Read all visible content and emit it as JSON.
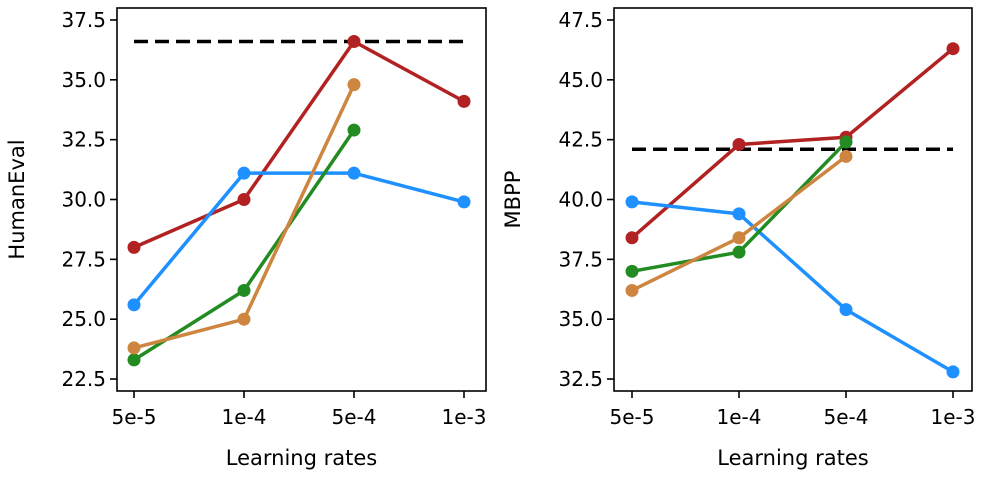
{
  "chart_data": [
    {
      "type": "line",
      "title": "",
      "xlabel": "Learning rates",
      "ylabel": "HumanEval",
      "categories": [
        "5e-5",
        "1e-4",
        "5e-4",
        "1e-3"
      ],
      "ylim": [
        22,
        38
      ],
      "yticks": [
        22.5,
        25.0,
        27.5,
        30.0,
        32.5,
        35.0,
        37.5
      ],
      "ytick_labels": [
        "22.5",
        "25.0",
        "27.5",
        "30.0",
        "32.5",
        "35.0",
        "37.5"
      ],
      "reference_line": {
        "value": 36.6,
        "style": "dashed",
        "color": "#000000"
      },
      "series": [
        {
          "name": "red",
          "color": "#b22222",
          "values": [
            28.0,
            30.0,
            36.6,
            34.1
          ]
        },
        {
          "name": "blue",
          "color": "#1e90ff",
          "values": [
            25.6,
            31.1,
            31.1,
            29.9
          ]
        },
        {
          "name": "green",
          "color": "#228b22",
          "values": [
            23.3,
            26.2,
            32.9,
            null
          ]
        },
        {
          "name": "orange",
          "color": "#cd853f",
          "values": [
            23.8,
            25.0,
            34.8,
            null
          ]
        }
      ]
    },
    {
      "type": "line",
      "title": "",
      "xlabel": "Learning rates",
      "ylabel": "MBPP",
      "categories": [
        "5e-5",
        "1e-4",
        "5e-4",
        "1e-3"
      ],
      "ylim": [
        32,
        48
      ],
      "yticks": [
        32.5,
        35.0,
        37.5,
        40.0,
        42.5,
        45.0,
        47.5
      ],
      "ytick_labels": [
        "32.5",
        "35.0",
        "37.5",
        "40.0",
        "42.5",
        "45.0",
        "47.5"
      ],
      "reference_line": {
        "value": 42.1,
        "style": "dashed",
        "color": "#000000"
      },
      "series": [
        {
          "name": "red",
          "color": "#b22222",
          "values": [
            38.4,
            42.3,
            42.6,
            46.3
          ]
        },
        {
          "name": "blue",
          "color": "#1e90ff",
          "values": [
            39.9,
            39.4,
            35.4,
            32.8
          ]
        },
        {
          "name": "green",
          "color": "#228b22",
          "values": [
            37.0,
            37.8,
            42.4,
            null
          ]
        },
        {
          "name": "orange",
          "color": "#cd853f",
          "values": [
            36.2,
            38.4,
            41.8,
            null
          ]
        }
      ]
    }
  ]
}
